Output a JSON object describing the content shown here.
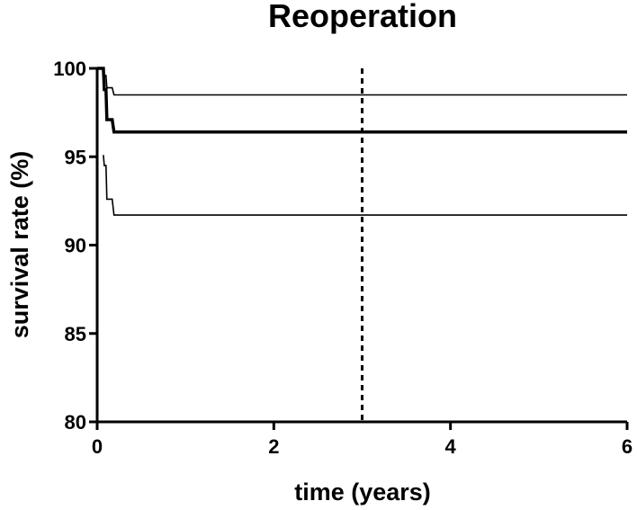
{
  "chart_data": {
    "type": "line",
    "title": "Reoperation",
    "xlabel": "time (years)",
    "ylabel": "survival rate (%)",
    "xlim": [
      0,
      6
    ],
    "ylim": [
      80,
      100
    ],
    "x_ticks": [
      "0",
      "2",
      "4",
      "6"
    ],
    "y_ticks": [
      "80",
      "85",
      "90",
      "95",
      "100"
    ],
    "grid": false,
    "legend": "none",
    "series": [
      {
        "role": "estimate",
        "style": "thick",
        "x": [
          0,
          0.07,
          0.08,
          0.1,
          0.11,
          0.17,
          0.19,
          6
        ],
        "y": [
          100,
          100,
          98.8,
          98.8,
          97.1,
          97.1,
          96.4,
          96.4
        ]
      },
      {
        "role": "upper-bound",
        "style": "thin",
        "x": [
          0,
          0.07,
          0.08,
          0.1,
          0.11,
          0.17,
          0.19,
          6
        ],
        "y": [
          100,
          100,
          99.6,
          99.6,
          98.9,
          98.9,
          98.5,
          98.5
        ]
      },
      {
        "role": "lower-bound",
        "style": "thin",
        "x": [
          0.07,
          0.08,
          0.1,
          0.11,
          0.17,
          0.19,
          6
        ],
        "y": [
          95.1,
          94.5,
          94.5,
          92.6,
          92.6,
          91.7,
          91.7
        ]
      }
    ],
    "reference_line": {
      "orientation": "vertical",
      "x": 3,
      "style": "dashed"
    }
  }
}
